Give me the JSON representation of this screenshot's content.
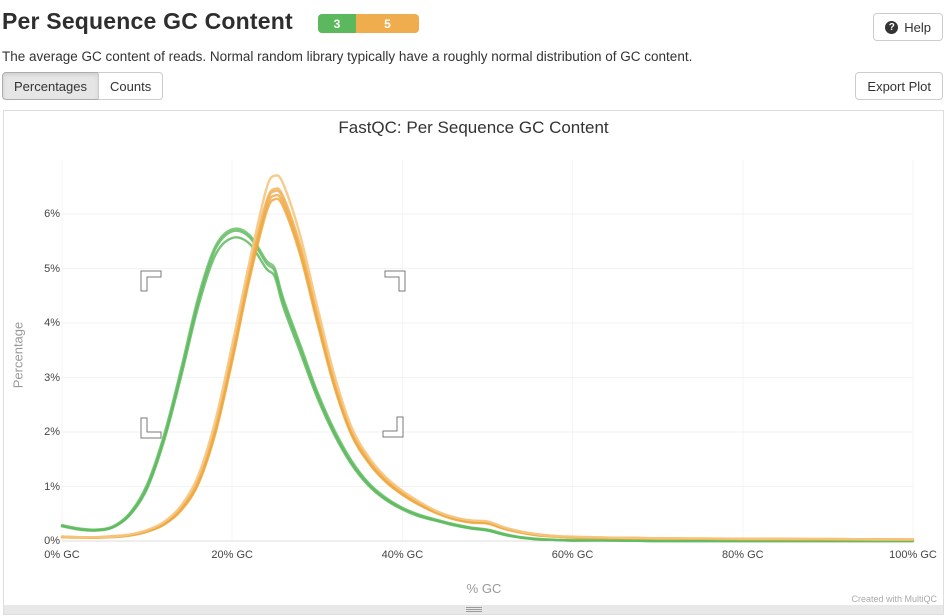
{
  "header": {
    "title": "Per Sequence GC Content",
    "badge": {
      "pass_count": "3",
      "warn_count": "5",
      "pass_color": "#5cb85c",
      "warn_color": "#f0ad4e"
    },
    "help_icon_glyph": "?",
    "help_label": "Help",
    "description": "The average GC content of reads. Normal random library typically have a roughly normal distribution of GC content."
  },
  "toolbar": {
    "percentages_label": "Percentages",
    "counts_label": "Counts",
    "active_tab": "Percentages",
    "export_label": "Export Plot"
  },
  "chart_data": {
    "type": "line",
    "title": "FastQC: Per Sequence GC Content",
    "xlabel": "% GC",
    "ylabel": "Percentage",
    "watermark": "Created with MultiQC",
    "xlim": [
      0,
      100
    ],
    "ylim": [
      0,
      7
    ],
    "grid": true,
    "legend": "none",
    "xticks": [
      {
        "value": 0,
        "label": "0% GC"
      },
      {
        "value": 20,
        "label": "20% GC"
      },
      {
        "value": 40,
        "label": "40% GC"
      },
      {
        "value": 60,
        "label": "60% GC"
      },
      {
        "value": 80,
        "label": "80% GC"
      },
      {
        "value": 100,
        "label": "100% GC"
      }
    ],
    "yticks": [
      {
        "value": 0,
        "label": "0%"
      },
      {
        "value": 1,
        "label": "1%"
      },
      {
        "value": 2,
        "label": "2%"
      },
      {
        "value": 3,
        "label": "3%"
      },
      {
        "value": 4,
        "label": "4%"
      },
      {
        "value": 5,
        "label": "5%"
      },
      {
        "value": 6,
        "label": "6%"
      }
    ],
    "x": [
      0,
      2,
      4,
      6,
      8,
      10,
      12,
      14,
      16,
      18,
      20,
      22,
      24,
      25,
      26,
      28,
      30,
      32,
      34,
      36,
      38,
      40,
      42,
      44,
      46,
      48,
      50,
      52,
      54,
      56,
      58,
      60,
      65,
      70,
      75,
      80,
      85,
      90,
      95,
      100
    ],
    "series": [
      {
        "id": "pass-1",
        "status": "pass",
        "color": "#5cb85c",
        "opacity": 0.8,
        "values": [
          0.28,
          0.22,
          0.2,
          0.26,
          0.5,
          1.0,
          1.9,
          3.1,
          4.4,
          5.35,
          5.68,
          5.58,
          5.1,
          4.95,
          4.4,
          3.55,
          2.7,
          2.0,
          1.45,
          1.05,
          0.78,
          0.6,
          0.47,
          0.38,
          0.3,
          0.24,
          0.2,
          0.12,
          0.06,
          0.03,
          0.02,
          0.01,
          0.01,
          0,
          0,
          0,
          0,
          0,
          0,
          0
        ]
      },
      {
        "id": "pass-2",
        "status": "pass",
        "color": "#55b555",
        "opacity": 0.8,
        "values": [
          0.27,
          0.21,
          0.19,
          0.25,
          0.48,
          0.96,
          1.84,
          3.02,
          4.3,
          5.24,
          5.56,
          5.46,
          5.0,
          4.85,
          4.3,
          3.46,
          2.63,
          1.95,
          1.41,
          1.02,
          0.76,
          0.58,
          0.45,
          0.37,
          0.29,
          0.23,
          0.19,
          0.11,
          0.06,
          0.03,
          0.02,
          0.01,
          0.01,
          0,
          0,
          0,
          0,
          0,
          0,
          0
        ]
      },
      {
        "id": "pass-3",
        "status": "pass",
        "color": "#63bd63",
        "opacity": 0.8,
        "values": [
          0.29,
          0.23,
          0.21,
          0.27,
          0.52,
          1.04,
          1.95,
          3.16,
          4.47,
          5.4,
          5.72,
          5.62,
          5.15,
          5.0,
          4.45,
          3.6,
          2.74,
          2.04,
          1.48,
          1.07,
          0.8,
          0.61,
          0.48,
          0.39,
          0.31,
          0.25,
          0.21,
          0.13,
          0.07,
          0.04,
          0.02,
          0.01,
          0.01,
          0,
          0,
          0,
          0,
          0,
          0,
          0
        ]
      },
      {
        "id": "warn-2",
        "status": "warn",
        "color": "#f0ad4e",
        "opacity": 0.8,
        "values": [
          0.08,
          0.07,
          0.07,
          0.08,
          0.11,
          0.18,
          0.32,
          0.6,
          1.1,
          2.05,
          3.42,
          4.92,
          6.18,
          6.42,
          6.28,
          5.38,
          4.12,
          2.92,
          2.01,
          1.49,
          1.13,
          0.88,
          0.69,
          0.53,
          0.42,
          0.36,
          0.34,
          0.24,
          0.16,
          0.11,
          0.09,
          0.07,
          0.06,
          0.05,
          0.04,
          0.04,
          0.04,
          0.03,
          0.03,
          0.03
        ]
      },
      {
        "id": "warn-3",
        "status": "warn",
        "color": "#efa843",
        "opacity": 0.8,
        "values": [
          0.07,
          0.07,
          0.06,
          0.08,
          0.11,
          0.18,
          0.31,
          0.58,
          1.07,
          2.0,
          3.35,
          4.84,
          6.1,
          6.34,
          6.2,
          5.3,
          4.06,
          2.87,
          1.98,
          1.46,
          1.11,
          0.86,
          0.67,
          0.52,
          0.41,
          0.35,
          0.33,
          0.23,
          0.16,
          0.11,
          0.08,
          0.07,
          0.05,
          0.05,
          0.04,
          0.04,
          0.03,
          0.03,
          0.03,
          0.03
        ]
      },
      {
        "id": "warn-4",
        "status": "warn",
        "color": "#f2b259",
        "opacity": 0.8,
        "values": [
          0.08,
          0.07,
          0.07,
          0.09,
          0.12,
          0.19,
          0.33,
          0.62,
          1.13,
          2.1,
          3.48,
          4.98,
          6.22,
          6.46,
          6.32,
          5.42,
          4.17,
          2.96,
          2.04,
          1.51,
          1.15,
          0.9,
          0.7,
          0.54,
          0.43,
          0.37,
          0.35,
          0.24,
          0.17,
          0.12,
          0.09,
          0.07,
          0.06,
          0.05,
          0.04,
          0.04,
          0.04,
          0.03,
          0.03,
          0.03
        ]
      },
      {
        "id": "warn-5",
        "status": "warn",
        "color": "#eea63b",
        "opacity": 0.8,
        "values": [
          0.07,
          0.06,
          0.06,
          0.07,
          0.1,
          0.17,
          0.3,
          0.56,
          1.04,
          1.96,
          3.3,
          4.78,
          6.02,
          6.27,
          6.13,
          5.24,
          4.0,
          2.83,
          1.95,
          1.44,
          1.09,
          0.85,
          0.66,
          0.51,
          0.4,
          0.34,
          0.32,
          0.22,
          0.15,
          0.1,
          0.08,
          0.06,
          0.05,
          0.04,
          0.04,
          0.03,
          0.03,
          0.03,
          0.03,
          0.02
        ]
      },
      {
        "id": "warn-1",
        "status": "warn",
        "color": "#f6c57f",
        "opacity": 0.9,
        "values": [
          0.08,
          0.07,
          0.07,
          0.08,
          0.12,
          0.2,
          0.35,
          0.65,
          1.2,
          2.2,
          3.6,
          5.1,
          6.45,
          6.7,
          6.55,
          5.6,
          4.3,
          3.05,
          2.1,
          1.55,
          1.18,
          0.92,
          0.72,
          0.55,
          0.44,
          0.38,
          0.36,
          0.25,
          0.17,
          0.12,
          0.09,
          0.08,
          0.06,
          0.05,
          0.05,
          0.04,
          0.04,
          0.04,
          0.03,
          0.03
        ]
      }
    ],
    "axis_colors": {
      "gridline": "#f2f2f2",
      "vertical_gridline": "#f5f5f5",
      "axis_line": "#dcdcdc"
    }
  }
}
